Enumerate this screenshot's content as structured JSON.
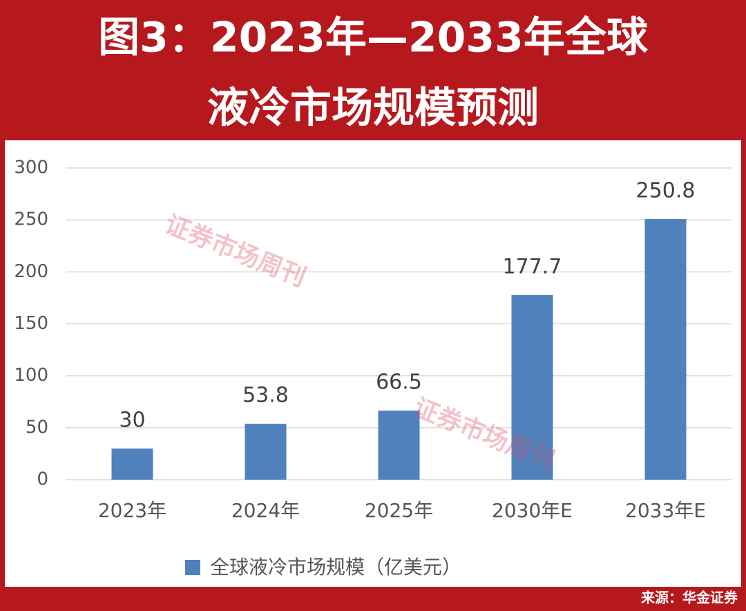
{
  "chart_data": {
    "type": "bar",
    "title": [
      "图3：2023年—2033年全球",
      "液冷市场规模预测"
    ],
    "categories": [
      "2023年",
      "2024年",
      "2025年",
      "2030年E",
      "2033年E"
    ],
    "series": [
      {
        "name": "全球液冷市场规模（亿美元）",
        "color": "#4f81bd",
        "values": [
          30,
          53.8,
          66.5,
          177.7,
          250.8
        ]
      }
    ],
    "ylim": [
      0,
      300
    ],
    "yticks": [
      0,
      50,
      100,
      150,
      200,
      250,
      300
    ],
    "grid": true,
    "legend": "bottom",
    "watermarks": [
      "证券市场周刊",
      "证券市场周刊"
    ],
    "source": "来源：华金证券"
  }
}
